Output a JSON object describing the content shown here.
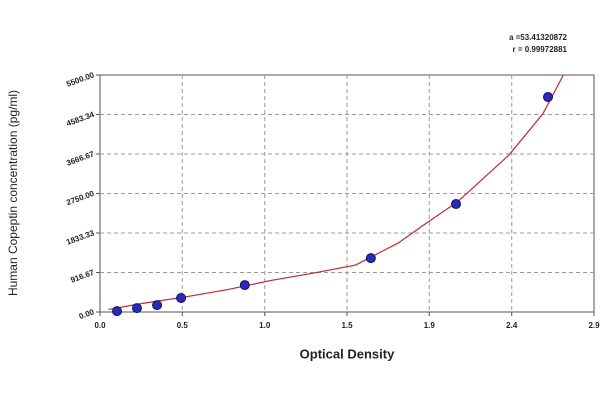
{
  "chart_data": {
    "type": "scatter",
    "annotations": [
      "a =53.41320872",
      "r = 0.99972881"
    ],
    "xlabel": "Optical Density",
    "ylabel": "Human Copeptin concentration (pg/ml)",
    "xlim": [
      0,
      2.9
    ],
    "ylim": [
      0,
      5500
    ],
    "xticks": [
      {
        "value": 0,
        "label": "0.0"
      },
      {
        "value": 0.483,
        "label": "0.5"
      },
      {
        "value": 0.967,
        "label": "1.0"
      },
      {
        "value": 1.45,
        "label": "1.5"
      },
      {
        "value": 1.933,
        "label": "1.9"
      },
      {
        "value": 2.417,
        "label": "2.4"
      },
      {
        "value": 2.9,
        "label": "2.9"
      }
    ],
    "yticks": [
      {
        "value": 0,
        "label": "0.00"
      },
      916.67,
      1833.33,
      {
        "value": 2750,
        "label": "2750.00"
      },
      3666.67,
      4583.34,
      {
        "value": 5500,
        "label": "5500.00"
      }
    ],
    "grid": true,
    "series": [
      {
        "color": "#2a2ab8",
        "x": [
          0.1,
          0.217,
          0.335,
          0.476,
          0.85,
          1.59,
          2.09,
          2.63
        ],
        "values": [
          20,
          90,
          160,
          325,
          625,
          1250,
          2505,
          4990
        ]
      },
      {
        "color": "#c0282d",
        "x": [
          0.05,
          0.25,
          0.5,
          0.75,
          1.0,
          1.25,
          1.5,
          1.75,
          1.9,
          2.1,
          2.4,
          2.6,
          2.72
        ],
        "values": [
          60,
          200,
          350,
          520,
          730,
          900,
          1090,
          1600,
          2020,
          2560,
          3640,
          4600,
          5500
        ]
      }
    ]
  }
}
